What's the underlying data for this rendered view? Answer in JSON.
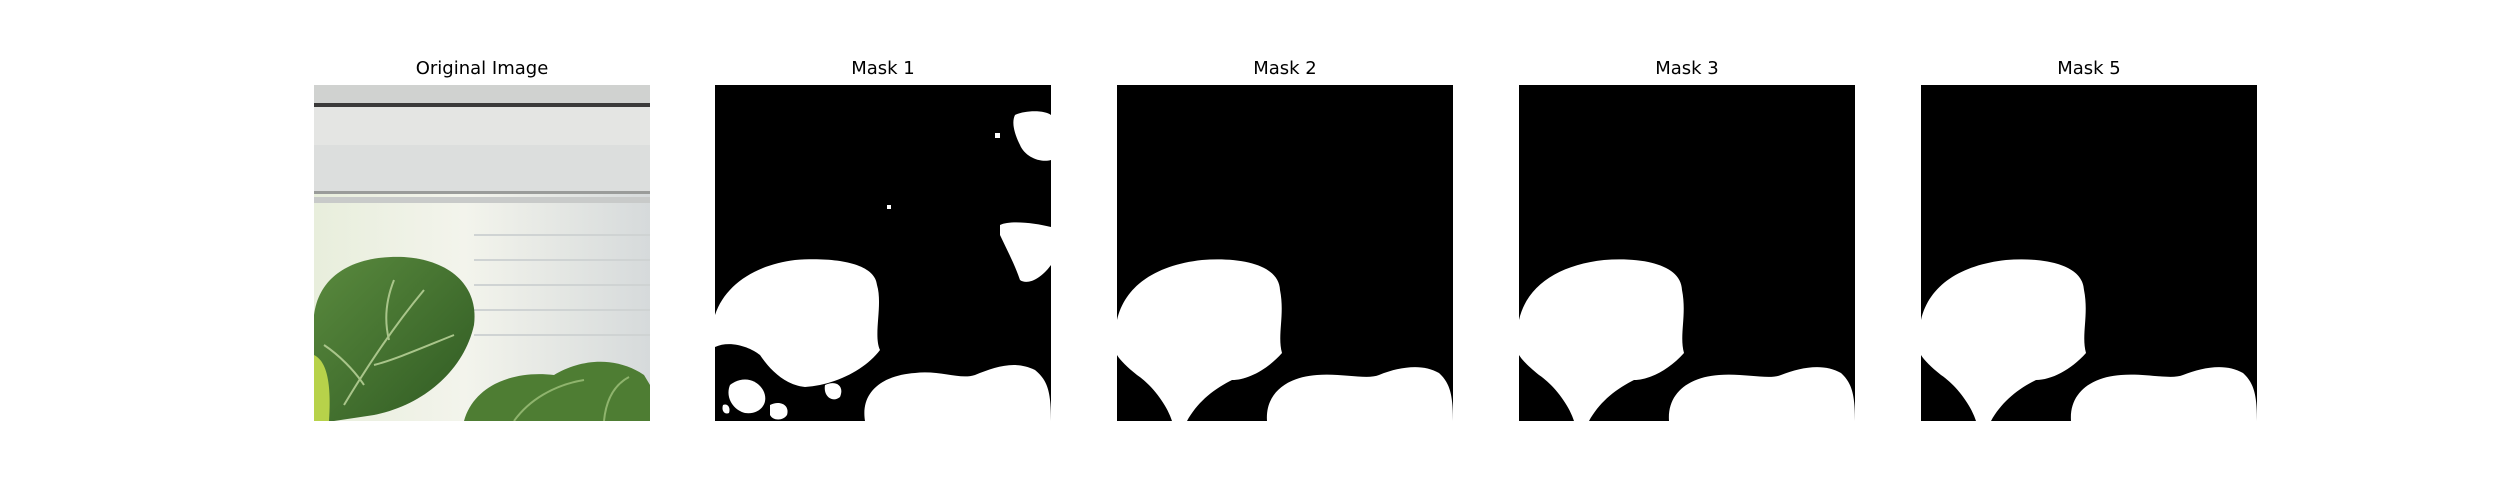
{
  "figure": {
    "panels": [
      {
        "title": "Original Image",
        "kind": "photo",
        "description_icon": "plant-leaf-photo"
      },
      {
        "title": "Mask 1",
        "kind": "mask"
      },
      {
        "title": "Mask 2",
        "kind": "mask"
      },
      {
        "title": "Mask 3",
        "kind": "mask"
      },
      {
        "title": "Mask 5",
        "kind": "mask"
      }
    ]
  },
  "colors": {
    "mask_background": "#000000",
    "mask_foreground": "#ffffff",
    "leaf_green": "#3f6f2c",
    "wall": "#d8dad8"
  }
}
